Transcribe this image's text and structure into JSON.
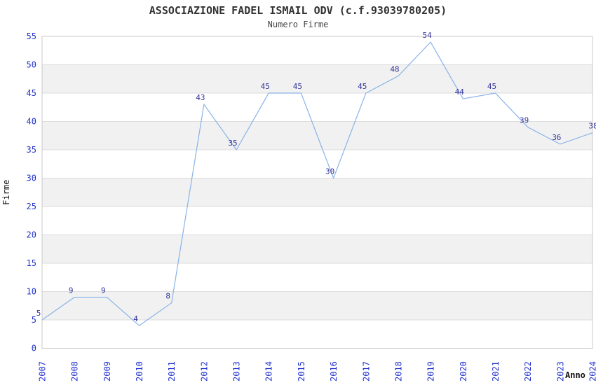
{
  "chart_data": {
    "type": "line",
    "title": "ASSOCIAZIONE FADEL ISMAIL ODV (c.f.93039780205)",
    "subtitle": "Numero Firme",
    "xlabel": "Anno",
    "ylabel": "Firme",
    "categories": [
      "2007",
      "2008",
      "2009",
      "2010",
      "2011",
      "2012",
      "2013",
      "2014",
      "2015",
      "2016",
      "2017",
      "2018",
      "2019",
      "2020",
      "2021",
      "2022",
      "2023",
      "2024"
    ],
    "values": [
      5,
      9,
      9,
      4,
      8,
      43,
      35,
      45,
      45,
      30,
      45,
      48,
      54,
      44,
      45,
      39,
      36,
      38
    ],
    "ylim": [
      0,
      55
    ],
    "ytick_step": 5,
    "yticks": [
      0,
      5,
      10,
      15,
      20,
      25,
      30,
      35,
      40,
      45,
      50,
      55
    ],
    "grid": "horizontal gridlines every 5 units with alternating shaded bands",
    "legend": "none",
    "colors": {
      "line": "#8ab3e8",
      "point_label": "#333399",
      "tick_label": "#2233cc",
      "axis_title": "#111111",
      "title_text": "#333333",
      "subtitle_text": "#444444",
      "band_shade": "#f1f1f1",
      "gridline": "#dcdcdc",
      "frame": "#c8c8c8",
      "background": "#ffffff"
    }
  }
}
